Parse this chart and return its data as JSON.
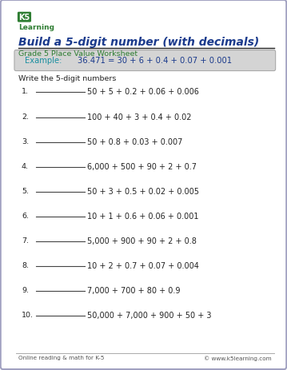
{
  "title": "Build a 5-digit number (with decimals)",
  "subtitle": "Grade 5 Place Value Worksheet",
  "example_label": "Example:",
  "example_content": "36.471 = 30 + 6 + 0.4 + 0.07 + 0.001",
  "instruction": "Write the 5-digit numbers",
  "problems": [
    "50 + 5 + 0.2 + 0.06 + 0.006",
    "100 + 40 + 3 + 0.4 + 0.02",
    "50 + 0.8 + 0.03 + 0.007",
    "6,000 + 500 + 90 + 2 + 0.7",
    "50 + 3 + 0.5 + 0.02 + 0.005",
    "10 + 1 + 0.6 + 0.06 + 0.001",
    "5,000 + 900 + 90 + 2 + 0.8",
    "10 + 2 + 0.7 + 0.07 + 0.004",
    "7,000 + 700 + 80 + 0.9",
    "50,000 + 7,000 + 900 + 50 + 3"
  ],
  "footer_left": "Online reading & math for K-5",
  "footer_right": "© www.k5learning.com",
  "title_color": "#1a3a8c",
  "subtitle_color": "#2e7d32",
  "example_label_color": "#1a8fa0",
  "example_content_color": "#1a3a8c",
  "example_bg_color": "#d4d4d4",
  "border_color": "#a0a0c0",
  "text_color": "#222222",
  "footer_color": "#555555",
  "bg_color": "#ffffff",
  "line_color": "#444444",
  "title_underline_color": "#222222",
  "footer_line_color": "#aaaaaa"
}
